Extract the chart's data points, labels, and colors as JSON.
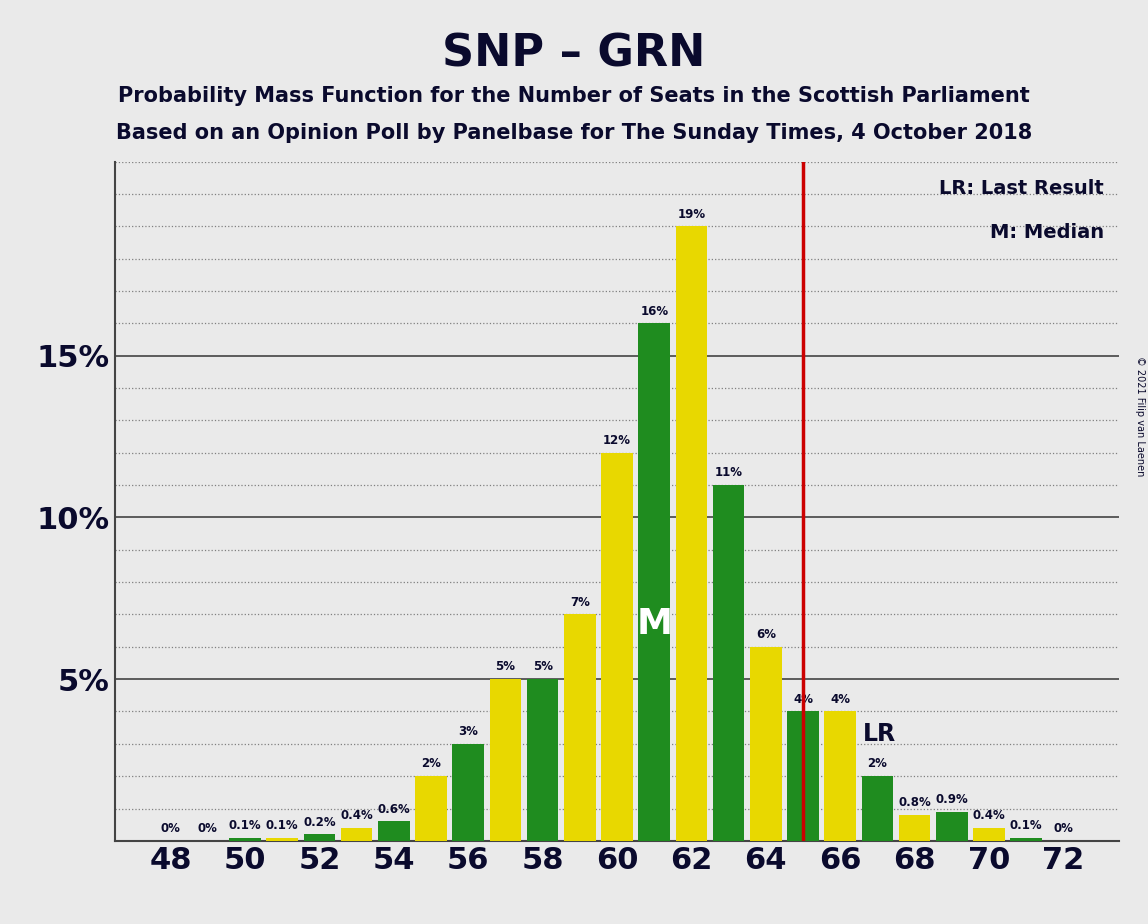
{
  "title": "SNP – GRN",
  "subtitle1": "Probability Mass Function for the Number of Seats in the Scottish Parliament",
  "subtitle2": "Based on an Opinion Poll by Panelbase for The Sunday Times, 4 October 2018",
  "copyright": "© 2021 Filip van Laenen",
  "seats": [
    48,
    49,
    50,
    51,
    52,
    53,
    54,
    55,
    56,
    57,
    58,
    59,
    60,
    61,
    62,
    63,
    64,
    65,
    66,
    67,
    68,
    69,
    70,
    71,
    72
  ],
  "values": [
    0.0,
    0.0,
    0.1,
    0.1,
    0.2,
    0.4,
    0.6,
    2.0,
    3.0,
    5.0,
    5.0,
    7.0,
    12.0,
    16.0,
    19.0,
    11.0,
    6.0,
    4.0,
    4.0,
    2.0,
    0.8,
    0.9,
    0.4,
    0.1,
    0.0
  ],
  "bar_colors": [
    "#1f8c1f",
    "#e8d800",
    "#1f8c1f",
    "#e8d800",
    "#1f8c1f",
    "#e8d800",
    "#1f8c1f",
    "#e8d800",
    "#1f8c1f",
    "#e8d800",
    "#1f8c1f",
    "#e8d800",
    "#e8d800",
    "#1f8c1f",
    "#e8d800",
    "#1f8c1f",
    "#e8d800",
    "#1f8c1f",
    "#e8d800",
    "#1f8c1f",
    "#e8d800",
    "#1f8c1f",
    "#e8d800",
    "#1f8c1f",
    "#e8d800"
  ],
  "lr_x": 65,
  "median_x": 61,
  "median_label": "M",
  "lr_label": "LR",
  "legend_lr": "LR: Last Result",
  "legend_m": "M: Median",
  "bg_color": "#EAEAEA",
  "plot_bg_color": "#EAEAEA",
  "xlim": [
    46.5,
    73.5
  ],
  "ylim": [
    0,
    21
  ],
  "bar_width": 0.85,
  "title_fontsize": 32,
  "subtitle_fontsize": 15,
  "ytick_fontsize": 22,
  "xtick_fontsize": 22,
  "text_color": "#0a0a2d",
  "green_color": "#1f8c1f",
  "yellow_color": "#e8d800",
  "red_line_color": "#cc0000",
  "grid_major_color": "#444444",
  "grid_minor_color": "#666666"
}
